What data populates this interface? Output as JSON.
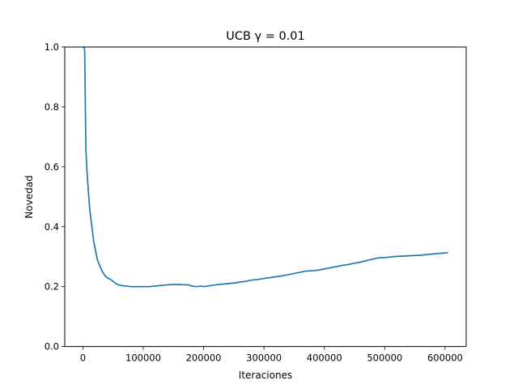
{
  "chart_data": {
    "type": "line",
    "title": "UCB γ = 0.01",
    "xlabel": "Iteraciones",
    "ylabel": "Novedad",
    "xlim": [
      -30000,
      635000
    ],
    "ylim": [
      0.0,
      1.0
    ],
    "x_ticks": [
      0,
      100000,
      200000,
      300000,
      400000,
      500000,
      600000
    ],
    "x_tick_labels": [
      "0",
      "100000",
      "200000",
      "300000",
      "400000",
      "500000",
      "600000"
    ],
    "y_ticks": [
      0.0,
      0.2,
      0.4,
      0.6,
      0.8,
      1.0
    ],
    "y_tick_labels": [
      "0.0",
      "0.2",
      "0.4",
      "0.6",
      "0.8",
      "1.0"
    ],
    "grid": false,
    "legend": "none",
    "color": "#1f77b4",
    "series": [
      {
        "x": [
          0,
          2000,
          3000,
          5000,
          7000,
          9000,
          11000,
          13000,
          15000,
          18000,
          21000,
          24000,
          27000,
          30000,
          33000,
          36000,
          40000,
          45000,
          50000,
          55000,
          60000,
          70000,
          80000,
          90000,
          100000,
          110000,
          120000,
          130000,
          140000,
          150000,
          160000,
          170000,
          175000,
          180000,
          190000,
          195000,
          200000,
          210000,
          220000,
          230000,
          240000,
          250000,
          260000,
          270000,
          280000,
          290000,
          300000,
          310000,
          320000,
          330000,
          340000,
          350000,
          360000,
          370000,
          380000,
          390000,
          400000,
          410000,
          420000,
          430000,
          440000,
          450000,
          460000,
          470000,
          480000,
          490000,
          500000,
          510000,
          520000,
          530000,
          540000,
          550000,
          560000,
          570000,
          580000,
          590000,
          600000,
          605000
        ],
        "y": [
          1.0,
          0.997,
          0.99,
          0.66,
          0.58,
          0.52,
          0.47,
          0.43,
          0.4,
          0.35,
          0.32,
          0.29,
          0.275,
          0.26,
          0.248,
          0.238,
          0.23,
          0.225,
          0.218,
          0.21,
          0.205,
          0.202,
          0.2,
          0.2,
          0.2,
          0.2,
          0.202,
          0.204,
          0.206,
          0.207,
          0.207,
          0.206,
          0.206,
          0.202,
          0.2,
          0.202,
          0.2,
          0.203,
          0.206,
          0.208,
          0.21,
          0.212,
          0.215,
          0.218,
          0.222,
          0.224,
          0.227,
          0.23,
          0.233,
          0.236,
          0.24,
          0.244,
          0.248,
          0.252,
          0.253,
          0.255,
          0.259,
          0.263,
          0.267,
          0.271,
          0.274,
          0.278,
          0.282,
          0.287,
          0.292,
          0.296,
          0.297,
          0.299,
          0.301,
          0.302,
          0.303,
          0.304,
          0.305,
          0.307,
          0.309,
          0.311,
          0.312,
          0.314
        ]
      }
    ]
  }
}
